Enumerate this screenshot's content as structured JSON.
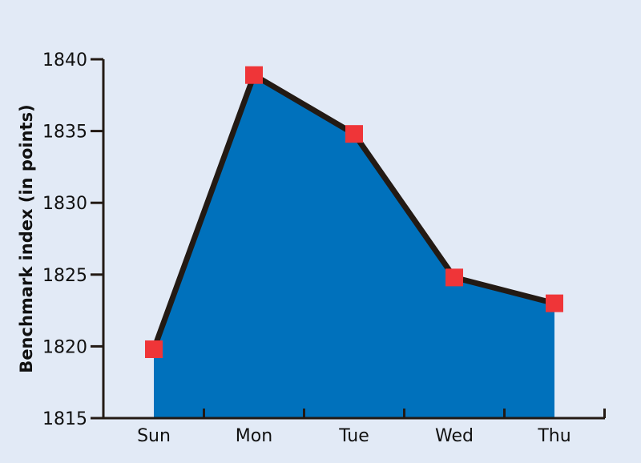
{
  "colors": {
    "background": "#e2eaf6",
    "area_fill": "#0071bc",
    "line": "#231a14",
    "marker": "#ef3538",
    "axis": "#231a14"
  },
  "chart_data": {
    "type": "area",
    "categories": [
      "Sun",
      "Mon",
      "Tue",
      "Wed",
      "Thu"
    ],
    "values": [
      1819.8,
      1838.9,
      1834.8,
      1824.8,
      1823.0
    ],
    "ylabel": "Benchmark index (in points)",
    "xlabel": "",
    "title": "",
    "ylim": [
      1815,
      1840
    ],
    "yticks": [
      "1815",
      "1820",
      "1825",
      "1830",
      "1835",
      "1840"
    ],
    "grid": false,
    "markers": "square"
  }
}
